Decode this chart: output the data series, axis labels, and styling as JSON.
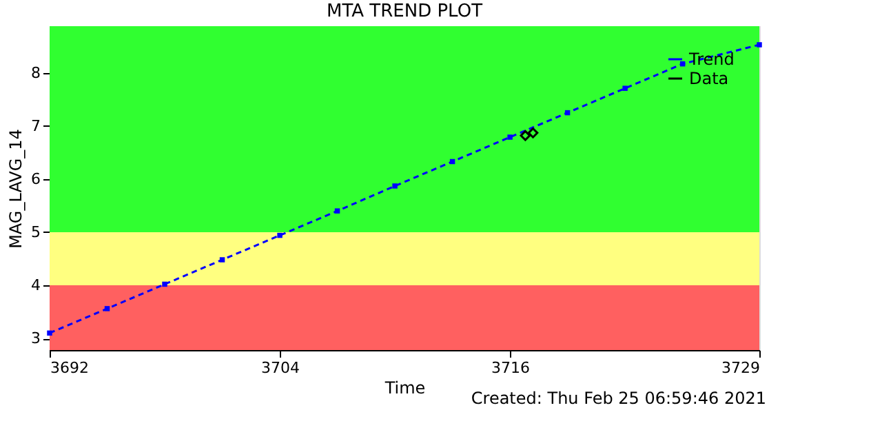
{
  "chart_data": {
    "type": "line",
    "title": "MTA TREND PLOT",
    "xlabel": "Time",
    "ylabel": "MAG_LAVG_14",
    "xlim": [
      3692,
      3729
    ],
    "xticks": [
      3692,
      3704,
      3716,
      3729
    ],
    "ylim": [
      2.78,
      8.88
    ],
    "yticks": [
      3,
      4,
      5,
      6,
      7,
      8
    ],
    "series": [
      {
        "name": "Trend",
        "color": "#0000ff",
        "marker": "square",
        "line_style": "dashed",
        "x": [
          3692,
          3695,
          3698,
          3701,
          3704,
          3707,
          3710,
          3713,
          3716,
          3719,
          3722,
          3725,
          3729
        ],
        "values": [
          3.1,
          3.56,
          4.02,
          4.48,
          4.94,
          5.4,
          5.87,
          6.33,
          6.79,
          7.25,
          7.71,
          8.17,
          8.53
        ]
      },
      {
        "name": "Data",
        "color": "#000000",
        "type": "scatter",
        "marker": "diamond",
        "x": [
          3716.8,
          3717.2
        ],
        "values": [
          6.82,
          6.87
        ]
      }
    ],
    "bands": [
      {
        "axis": "y",
        "from": 2.78,
        "to": 4,
        "color": "#ff6060"
      },
      {
        "axis": "y",
        "from": 4,
        "to": 5,
        "color": "#ffff80"
      },
      {
        "axis": "y",
        "from": 5,
        "to": 8.88,
        "color": "#30ff30"
      }
    ],
    "legend": "top right",
    "annotations": [
      "Created: Thu Feb 25 06:59:46 2021"
    ]
  }
}
